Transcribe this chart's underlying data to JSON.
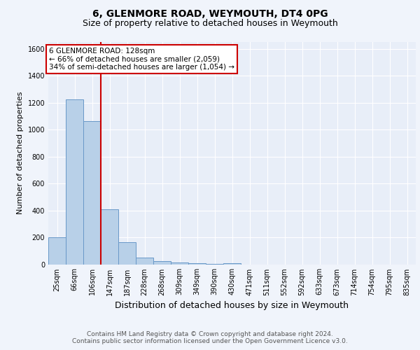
{
  "title1": "6, GLENMORE ROAD, WEYMOUTH, DT4 0PG",
  "title2": "Size of property relative to detached houses in Weymouth",
  "xlabel": "Distribution of detached houses by size in Weymouth",
  "ylabel": "Number of detached properties",
  "bar_labels": [
    "25sqm",
    "66sqm",
    "106sqm",
    "147sqm",
    "187sqm",
    "228sqm",
    "268sqm",
    "309sqm",
    "349sqm",
    "390sqm",
    "430sqm",
    "471sqm",
    "511sqm",
    "552sqm",
    "592sqm",
    "633sqm",
    "673sqm",
    "714sqm",
    "754sqm",
    "795sqm",
    "835sqm"
  ],
  "bar_values": [
    200,
    1225,
    1065,
    410,
    165,
    50,
    25,
    15,
    10,
    5,
    10,
    0,
    0,
    0,
    0,
    0,
    0,
    0,
    0,
    0,
    0
  ],
  "bar_color": "#b8d0e8",
  "bar_edge_color": "#6898c8",
  "property_line_x": 2.5,
  "property_line_color": "#cc0000",
  "annotation_text": "6 GLENMORE ROAD: 128sqm\n← 66% of detached houses are smaller (2,059)\n34% of semi-detached houses are larger (1,054) →",
  "annotation_box_color": "#ffffff",
  "annotation_box_edge": "#cc0000",
  "ylim": [
    0,
    1650
  ],
  "yticks": [
    0,
    200,
    400,
    600,
    800,
    1000,
    1200,
    1400,
    1600
  ],
  "footer": "Contains HM Land Registry data © Crown copyright and database right 2024.\nContains public sector information licensed under the Open Government Licence v3.0.",
  "fig_facecolor": "#f0f4fb",
  "plot_background": "#e8eef8",
  "grid_color": "#ffffff",
  "title1_fontsize": 10,
  "title2_fontsize": 9,
  "xlabel_fontsize": 9,
  "ylabel_fontsize": 8,
  "tick_fontsize": 7,
  "annotation_fontsize": 7.5,
  "footer_fontsize": 6.5
}
